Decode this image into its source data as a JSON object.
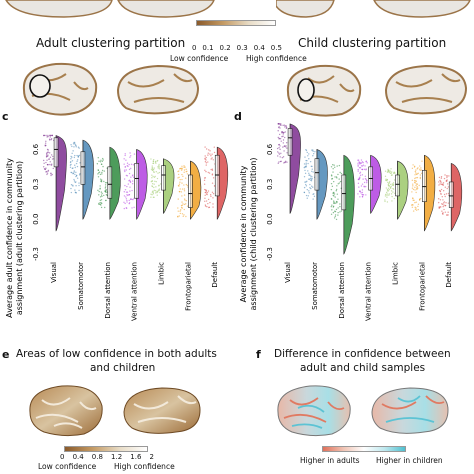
{
  "panels": {
    "top_left_title": "Adult clustering partition",
    "top_right_title": "Child clustering partition",
    "top_colorbar": {
      "ticks": [
        "0",
        "0.1",
        "0.2",
        "0.3",
        "0.4",
        "0.5"
      ],
      "low_label": "Low confidence",
      "high_label": "High confidence"
    },
    "c_letter": "c",
    "d_letter": "d",
    "e_letter": "e",
    "f_letter": "f",
    "e_title_line1": "Areas of low confidence in both adults",
    "e_title_line2": "and children",
    "f_title_line1": "Difference in confidence between",
    "f_title_line2": "adult and child samples",
    "e_colorbar": {
      "ticks": [
        "0",
        "0.4",
        "0.8",
        "1.2",
        "1.6",
        "2"
      ],
      "low_label": "Low confidence",
      "high_label": "High confidence"
    },
    "f_legend": {
      "left_label": "Higher in adults",
      "right_label": "Higher in children"
    }
  },
  "colors": {
    "Visual": "#7b2d8e",
    "Somatomotor": "#4a86b5",
    "Dorsal attention": "#2e8b3e",
    "Ventral attention": "#b23fe0",
    "Limbic": "#9cc86a",
    "Frontoparietal": "#f0a023",
    "Default": "#d84a4a",
    "brain_low": "#8a5a2b",
    "brain_high": "#f2efe9"
  },
  "chart_data": [
    {
      "type": "violin",
      "panel": "c",
      "ylabel_line1": "Average adult confidence in community",
      "ylabel_line2": "assignment (adult clustering partition)",
      "ylim": [
        -0.3,
        0.75
      ],
      "yticks": [
        "0.6",
        "0.3",
        "0.0",
        "-0.3"
      ],
      "ytick_values": [
        0.6,
        0.3,
        0.0,
        -0.3
      ],
      "categories": [
        "Visual",
        "Somatomotor",
        "Dorsal attention",
        "Ventral attention",
        "Limbic",
        "Frontoparietal",
        "Default"
      ],
      "series": [
        {
          "min": -0.1,
          "max": 0.72,
          "q1": 0.45,
          "median": 0.6,
          "q3": 0.7
        },
        {
          "min": 0.0,
          "max": 0.68,
          "q1": 0.3,
          "median": 0.45,
          "q3": 0.58
        },
        {
          "min": 0.0,
          "max": 0.62,
          "q1": 0.18,
          "median": 0.3,
          "q3": 0.45
        },
        {
          "min": 0.0,
          "max": 0.6,
          "q1": 0.18,
          "median": 0.35,
          "q3": 0.48
        },
        {
          "min": 0.05,
          "max": 0.52,
          "q1": 0.25,
          "median": 0.38,
          "q3": 0.46
        },
        {
          "min": 0.0,
          "max": 0.5,
          "q1": 0.1,
          "median": 0.22,
          "q3": 0.38
        },
        {
          "min": 0.0,
          "max": 0.62,
          "q1": 0.2,
          "median": 0.38,
          "q3": 0.55
        }
      ]
    },
    {
      "type": "violin",
      "panel": "d",
      "ylabel_line1": "Average confidence in community",
      "ylabel_line2": "assignment (child clustering partition)",
      "ylim": [
        -0.3,
        0.75
      ],
      "yticks": [
        "0.6",
        "0.3",
        "0.0",
        "-0.3"
      ],
      "ytick_values": [
        0.6,
        0.3,
        0.0,
        -0.3
      ],
      "categories": [
        "Visual",
        "Somatomotor",
        "Dorsal attention",
        "Ventral attention",
        "Limbic",
        "Frontoparietal",
        "Default"
      ],
      "series": [
        {
          "min": 0.05,
          "max": 0.82,
          "q1": 0.55,
          "median": 0.7,
          "q3": 0.78
        },
        {
          "min": 0.0,
          "max": 0.6,
          "q1": 0.25,
          "median": 0.4,
          "q3": 0.52
        },
        {
          "min": -0.3,
          "max": 0.55,
          "q1": 0.08,
          "median": 0.22,
          "q3": 0.38
        },
        {
          "min": 0.05,
          "max": 0.55,
          "q1": 0.25,
          "median": 0.35,
          "q3": 0.45
        },
        {
          "min": 0.0,
          "max": 0.5,
          "q1": 0.2,
          "median": 0.3,
          "q3": 0.38
        },
        {
          "min": -0.1,
          "max": 0.55,
          "q1": 0.15,
          "median": 0.28,
          "q3": 0.42
        },
        {
          "min": -0.1,
          "max": 0.48,
          "q1": 0.1,
          "median": 0.2,
          "q3": 0.32
        }
      ]
    }
  ]
}
